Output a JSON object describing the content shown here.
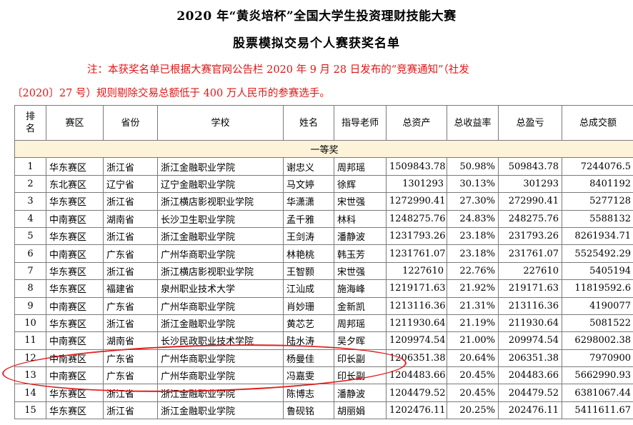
{
  "title": "2020 年“黄炎培杯”全国大学生投资理财技能大赛",
  "subtitle": "股票模拟交易个人赛获奖名单",
  "note_line1": "注：本获奖名单已根据大赛官网公告栏 2020 年 9 月 28 日发布的“竞赛通知”（社发",
  "note_line2": "〔2020〕27 号）规则剔除交易总额低于 400 万人民币的参赛选手。",
  "headers": {
    "rank": "排名",
    "region": "赛区",
    "province": "省份",
    "school": "学校",
    "name": "姓名",
    "teacher": "指导老师",
    "total_assets": "总资产",
    "total_return": "总收益率",
    "total_profit": "总盈亏",
    "total_volume": "总成交额"
  },
  "section_label": "一等奖",
  "rows": [
    {
      "rank": "1",
      "region": "华东赛区",
      "province": "浙江省",
      "school": "浙江金融职业学院",
      "name": "谢忠义",
      "teacher": "周邦瑶",
      "assets": "1509843.78",
      "return": "50.98%",
      "profit": "509843.78",
      "volume": "7244076.5"
    },
    {
      "rank": "2",
      "region": "东北赛区",
      "province": "辽宁省",
      "school": "辽宁金融职业学院",
      "name": "马文婷",
      "teacher": "徐辉",
      "assets": "1301293",
      "return": "30.13%",
      "profit": "301293",
      "volume": "8401192"
    },
    {
      "rank": "3",
      "region": "华东赛区",
      "province": "浙江省",
      "school": "浙江横店影视职业学院",
      "name": "华潇潇",
      "teacher": "宋世强",
      "assets": "1272990.41",
      "return": "27.30%",
      "profit": "272990.41",
      "volume": "5277128"
    },
    {
      "rank": "4",
      "region": "中南赛区",
      "province": "湖南省",
      "school": "长沙卫生职业学院",
      "name": "孟千雅",
      "teacher": "林科",
      "assets": "1248275.76",
      "return": "24.83%",
      "profit": "248275.76",
      "volume": "5588132"
    },
    {
      "rank": "5",
      "region": "华东赛区",
      "province": "浙江省",
      "school": "浙江金融职业学院",
      "name": "王剑涛",
      "teacher": "潘静波",
      "assets": "1231793.26",
      "return": "23.18%",
      "profit": "231793.26",
      "volume": "8261934.71"
    },
    {
      "rank": "6",
      "region": "中南赛区",
      "province": "广东省",
      "school": "广州华商职业学院",
      "name": "林艳桃",
      "teacher": "韩玉芳",
      "assets": "1231761.07",
      "return": "23.18%",
      "profit": "231761.07",
      "volume": "5525492.29"
    },
    {
      "rank": "7",
      "region": "华东赛区",
      "province": "浙江省",
      "school": "浙江横店影视职业学院",
      "name": "王智颢",
      "teacher": "宋世强",
      "assets": "1227610",
      "return": "22.76%",
      "profit": "227610",
      "volume": "5405194"
    },
    {
      "rank": "8",
      "region": "华东赛区",
      "province": "福建省",
      "school": "泉州职业技术大学",
      "name": "江汕成",
      "teacher": "施海峰",
      "assets": "1219171.63",
      "return": "21.92%",
      "profit": "219171.63",
      "volume": "11819592.6"
    },
    {
      "rank": "9",
      "region": "中南赛区",
      "province": "广东省",
      "school": "广州华商职业学院",
      "name": "肖妙珊",
      "teacher": "金新凯",
      "assets": "1213116.36",
      "return": "21.31%",
      "profit": "213116.36",
      "volume": "4190077"
    },
    {
      "rank": "10",
      "region": "华东赛区",
      "province": "浙江省",
      "school": "浙江金融职业学院",
      "name": "黄芯艺",
      "teacher": "周邦瑶",
      "assets": "1211930.64",
      "return": "21.19%",
      "profit": "211930.64",
      "volume": "5081522"
    },
    {
      "rank": "11",
      "region": "中南赛区",
      "province": "湖南省",
      "school": "长沙民政职业技术学院",
      "name": "陆水涛",
      "teacher": "吴夕晖",
      "assets": "1209974.54",
      "return": "21.00%",
      "profit": "209974.54",
      "volume": "6298002.38"
    },
    {
      "rank": "12",
      "region": "中南赛区",
      "province": "广东省",
      "school": "广州华商职业学院",
      "name": "杨曼佳",
      "teacher": "印长副",
      "assets": "1206351.38",
      "return": "20.64%",
      "profit": "206351.38",
      "volume": "7970900"
    },
    {
      "rank": "13",
      "region": "中南赛区",
      "province": "广东省",
      "school": "广州华商职业学院",
      "name": "冯嘉雯",
      "teacher": "印长副",
      "assets": "1204483.66",
      "return": "20.45%",
      "profit": "204483.66",
      "volume": "5662990.93"
    },
    {
      "rank": "14",
      "region": "华东赛区",
      "province": "浙江省",
      "school": "浙江金融职业学院",
      "name": "陈博志",
      "teacher": "潘静波",
      "assets": "1204479.52",
      "return": "20.45%",
      "profit": "204479.52",
      "volume": "6381067.44"
    },
    {
      "rank": "15",
      "region": "华东赛区",
      "province": "浙江省",
      "school": "浙江金融职业学院",
      "name": "鲁砚铭",
      "teacher": "胡丽娟",
      "assets": "1202476.11",
      "return": "20.25%",
      "profit": "202476.11",
      "volume": "5411611.67"
    }
  ],
  "colors": {
    "note_text": "#e01515",
    "section_bg": "#fdf3d9",
    "highlight_ellipse": "#e01e1e",
    "grid": "#7a7a7a"
  }
}
